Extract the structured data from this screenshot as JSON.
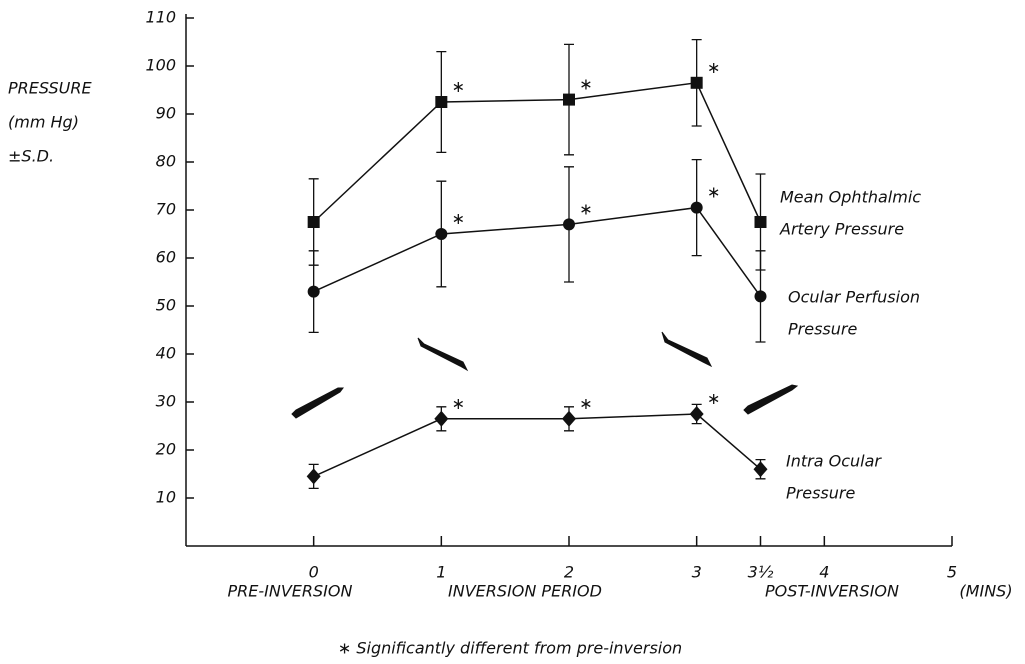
{
  "chart_data": {
    "type": "line",
    "ylabel": [
      "PRESSURE",
      "(mm Hg)",
      "±S.D."
    ],
    "x_group_labels": [
      "PRE-INVERSION",
      "INVERSION PERIOD",
      "POST-INVERSION"
    ],
    "x_unit": "(MINS)",
    "footnote": "∗ Significantly different from pre-inversion",
    "significance_marker": "∗",
    "xlim": [
      -1,
      5
    ],
    "xticks": [
      0,
      1,
      2,
      3,
      {
        "value": 3.5,
        "label": "3½"
      },
      4,
      5
    ],
    "ylim": [
      0,
      110
    ],
    "yticks": [
      10,
      20,
      30,
      40,
      50,
      60,
      70,
      80,
      90,
      100,
      110
    ],
    "series": [
      {
        "label_lines": [
          "Mean Ophthalmic",
          "Artery Pressure"
        ],
        "color": "#111111",
        "marker": "square",
        "x": [
          0,
          1,
          2,
          3,
          3.5
        ],
        "values": [
          67.5,
          92.5,
          93,
          96.5,
          67.5
        ],
        "errors": [
          9,
          10.5,
          11.5,
          9,
          10
        ],
        "significant": [
          false,
          true,
          true,
          true,
          false
        ]
      },
      {
        "label_lines": [
          "Ocular Perfusion",
          "Pressure"
        ],
        "color": "#111111",
        "marker": "circle",
        "x": [
          0,
          1,
          2,
          3,
          3.5
        ],
        "values": [
          53,
          65,
          67,
          70.5,
          52
        ],
        "errors": [
          8.5,
          11,
          12,
          10,
          9.5
        ],
        "significant": [
          false,
          true,
          true,
          true,
          false
        ]
      },
      {
        "label_lines": [
          "Intra Ocular",
          "Pressure"
        ],
        "color": "#111111",
        "marker": "diamond",
        "x": [
          0,
          1,
          2,
          3,
          3.5
        ],
        "values": [
          14.5,
          26.5,
          26.5,
          27.5,
          16
        ],
        "errors": [
          2.5,
          2.5,
          2.5,
          2,
          2
        ],
        "significant": [
          false,
          true,
          true,
          true,
          false
        ]
      }
    ]
  }
}
